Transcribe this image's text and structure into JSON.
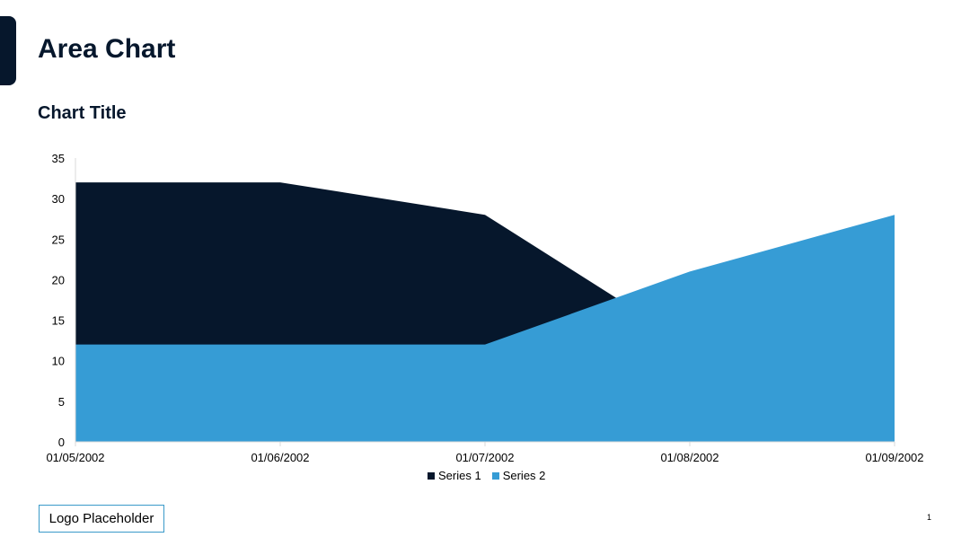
{
  "slide": {
    "title": "Area Chart",
    "logo_placeholder": "Logo Placeholder",
    "page_number": "1",
    "accent_color": "#06172c"
  },
  "chart_data": {
    "type": "area",
    "title": "Chart Title",
    "categories": [
      "01/05/2002",
      "01/06/2002",
      "01/07/2002",
      "01/08/2002",
      "01/09/2002"
    ],
    "y_ticks": [
      "0",
      "5",
      "10",
      "15",
      "20",
      "25",
      "30",
      "35"
    ],
    "ylim": [
      0,
      35
    ],
    "grid": false,
    "legend_position": "bottom",
    "series": [
      {
        "name": "Series 1",
        "values": [
          32,
          32,
          28,
          12,
          15
        ],
        "color": "#06172c"
      },
      {
        "name": "Series 2",
        "values": [
          12,
          12,
          12,
          21,
          28
        ],
        "color": "#369cd5"
      }
    ]
  }
}
